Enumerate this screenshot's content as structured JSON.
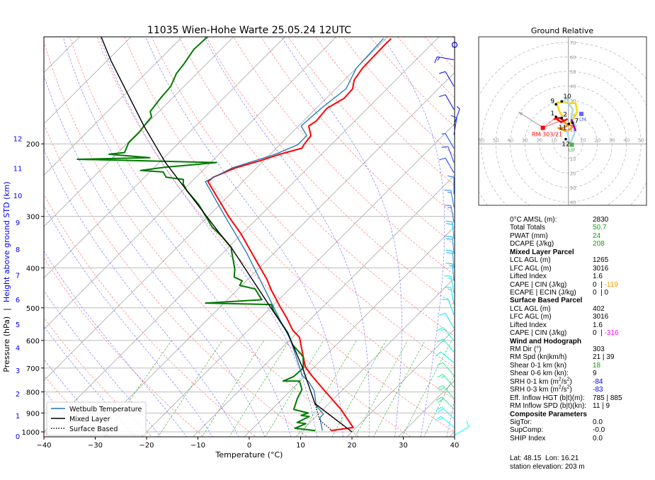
{
  "chart_data": {
    "type": "line",
    "title": "11035 Wien-Hohe Warte 25.05.24 12UTC",
    "xlabel": "Temperature (°C)",
    "ylabel_pressure": "Pressure (hPa)",
    "ylabel_sep": "|",
    "ylabel_height": "Height above ground STD (km)",
    "xlim": [
      -40,
      40
    ],
    "ylim_hpa": [
      1028,
      110
    ],
    "x_ticks": [
      -40,
      -30,
      -20,
      -10,
      0,
      10,
      20,
      30,
      40
    ],
    "x_tick_labels": [
      "−40",
      "−30",
      "−20",
      "−10",
      "0",
      "10",
      "20",
      "30",
      "40"
    ],
    "p_ticks": [
      1000,
      900,
      800,
      700,
      600,
      500,
      400,
      300,
      200
    ],
    "p_tick_labels": [
      "1000",
      "900",
      "800",
      "700",
      "600",
      "500",
      "400",
      "300",
      "200"
    ],
    "height_ticks": [
      {
        "km": "0",
        "p": 1025
      },
      {
        "km": "1",
        "p": 913
      },
      {
        "km": "2",
        "p": 808
      },
      {
        "km": "3",
        "p": 709
      },
      {
        "km": "4",
        "p": 625
      },
      {
        "km": "5",
        "p": 548
      },
      {
        "km": "6",
        "p": 477
      },
      {
        "km": "7",
        "p": 416
      },
      {
        "km": "8",
        "p": 360
      },
      {
        "km": "9",
        "p": 310
      },
      {
        "km": "10",
        "p": 267
      },
      {
        "km": "11",
        "p": 229
      },
      {
        "km": "12",
        "p": 194
      }
    ],
    "legend": [
      "Wetbulb Temperature",
      "Mixed Layer",
      "Surface Based"
    ],
    "legend_placement": "lower-left",
    "colors": {
      "temperature": "#ff0000",
      "dewpoint": "#007a00",
      "wetbulb": "#1f77b4",
      "parcel": "#000000",
      "height_axis": "#0000ff"
    },
    "series": [
      {
        "name": "Temperature",
        "points": [
          [
            993,
            15.6
          ],
          [
            976,
            19.4
          ],
          [
            882,
            13.5
          ],
          [
            789,
            6.2
          ],
          [
            729,
            1.1
          ],
          [
            696,
            -1.7
          ],
          [
            656,
            -4.2
          ],
          [
            590,
            -8.6
          ],
          [
            567,
            -11.3
          ],
          [
            528,
            -15.0
          ],
          [
            494,
            -18.7
          ],
          [
            453,
            -23.3
          ],
          [
            427,
            -26.2
          ],
          [
            367,
            -34.5
          ],
          [
            330,
            -40.3
          ],
          [
            301,
            -45.8
          ],
          [
            247,
            -56.8
          ],
          [
            241,
            -56.6
          ],
          [
            229,
            -54.2
          ],
          [
            220,
            -50.8
          ],
          [
            212,
            -48.1
          ],
          [
            205,
            -45.0
          ],
          [
            201,
            -45.3
          ],
          [
            191,
            -45.7
          ],
          [
            181,
            -48.0
          ],
          [
            176,
            -47.5
          ],
          [
            164,
            -47.9
          ],
          [
            155,
            -46.5
          ],
          [
            147,
            -46.7
          ],
          [
            140,
            -48.1
          ],
          [
            131,
            -48.8
          ],
          [
            115,
            -49.0
          ],
          [
            111,
            -49.0
          ]
        ]
      },
      {
        "name": "Dewpoint",
        "points": [
          [
            993,
            12.6
          ],
          [
            980,
            8.2
          ],
          [
            955,
            9.4
          ],
          [
            949,
            7.5
          ],
          [
            918,
            8.7
          ],
          [
            912,
            6.9
          ],
          [
            900,
            7.8
          ],
          [
            882,
            4.3
          ],
          [
            831,
            2.9
          ],
          [
            789,
            2.0
          ],
          [
            753,
            -0.1
          ],
          [
            753,
            -3.3
          ],
          [
            734,
            -2.1
          ],
          [
            700,
            -1.9
          ],
          [
            656,
            -4.2
          ],
          [
            614,
            -8.6
          ],
          [
            575,
            -11.8
          ],
          [
            510,
            -18.7
          ],
          [
            491,
            -20.5
          ],
          [
            487,
            -33.6
          ],
          [
            478,
            -23.3
          ],
          [
            450,
            -26.7
          ],
          [
            441,
            -30.4
          ],
          [
            430,
            -30.8
          ],
          [
            421,
            -33.1
          ],
          [
            403,
            -34.5
          ],
          [
            362,
            -38.9
          ],
          [
            357,
            -39.4
          ],
          [
            335,
            -43.5
          ],
          [
            318,
            -47.2
          ],
          [
            305,
            -49.5
          ],
          [
            280,
            -54.3
          ],
          [
            260,
            -59.1
          ],
          [
            250,
            -61.2
          ],
          [
            244,
            -62.0
          ],
          [
            241,
            -65.8
          ],
          [
            234,
            -67.4
          ],
          [
            232,
            -72.1
          ],
          [
            228,
            -68.0
          ],
          [
            222,
            -58.9
          ],
          [
            218,
            -86.6
          ],
          [
            216,
            -72.8
          ],
          [
            212,
            -81.4
          ],
          [
            210,
            -78.7
          ],
          [
            199,
            -79.8
          ],
          [
            187,
            -79.8
          ],
          [
            181,
            -80.1
          ],
          [
            172,
            -80.4
          ],
          [
            167,
            -81.7
          ],
          [
            155,
            -82.3
          ],
          [
            145,
            -82.6
          ],
          [
            135,
            -84.0
          ],
          [
            128,
            -84.4
          ],
          [
            118,
            -85.3
          ],
          [
            110,
            -85.1
          ]
        ]
      },
      {
        "name": "Wetbulb Temperature",
        "points": [
          [
            993,
            14.0
          ],
          [
            924,
            11.0
          ],
          [
            906,
            11.0
          ],
          [
            865,
            8.0
          ],
          [
            794,
            4.6
          ],
          [
            758,
            2.0
          ],
          [
            729,
            -0.7
          ],
          [
            673,
            -4.4
          ],
          [
            598,
            -9.9
          ],
          [
            528,
            -16.5
          ],
          [
            453,
            -24.5
          ],
          [
            367,
            -35.5
          ],
          [
            301,
            -46.5
          ],
          [
            247,
            -57.3
          ],
          [
            229,
            -54.8
          ],
          [
            212,
            -49.0
          ],
          [
            201,
            -46.5
          ],
          [
            191,
            -46.5
          ],
          [
            181,
            -49.5
          ],
          [
            164,
            -49.0
          ],
          [
            147,
            -48.0
          ],
          [
            131,
            -50.0
          ],
          [
            111,
            -50.5
          ]
        ]
      },
      {
        "name": "Mixed Layer",
        "points": [
          [
            1000,
            20.0
          ],
          [
            854,
            7.3
          ],
          [
            696,
            -2.3
          ],
          [
            575,
            -11.8
          ],
          [
            491,
            -21.0
          ],
          [
            357,
            -39.4
          ],
          [
            330,
            -44.4
          ],
          [
            222,
            -68.8
          ],
          [
            181,
            -80.1
          ],
          [
            126,
            -99.1
          ],
          [
            110,
            -105.8
          ]
        ]
      },
      {
        "name": "Surface Based",
        "points": [
          [
            987,
            15.4
          ],
          [
            936,
            11.4
          ],
          [
            871,
            8.2
          ],
          [
            854,
            7.3
          ]
        ]
      }
    ],
    "wind_barbs": [
      {
        "p": 125,
        "dir": 280,
        "spd": 15
      },
      {
        "p": 145,
        "dir": 330,
        "spd": 10
      },
      {
        "p": 165,
        "dir": 330,
        "spd": 10
      },
      {
        "p": 180,
        "dir": 20,
        "spd": 5
      },
      {
        "p": 190,
        "dir": 10,
        "spd": 10
      },
      {
        "p": 205,
        "dir": 330,
        "spd": 5
      },
      {
        "p": 222,
        "dir": 340,
        "spd": 10
      },
      {
        "p": 235,
        "dir": 330,
        "spd": 10
      },
      {
        "p": 265,
        "dir": 0,
        "spd": 10
      },
      {
        "p": 285,
        "dir": 350,
        "spd": 15
      },
      {
        "p": 310,
        "dir": 350,
        "spd": 15
      },
      {
        "p": 340,
        "dir": 355,
        "spd": 20
      },
      {
        "p": 370,
        "dir": 355,
        "spd": 20
      },
      {
        "p": 400,
        "dir": 355,
        "spd": 20
      },
      {
        "p": 430,
        "dir": 355,
        "spd": 15
      },
      {
        "p": 460,
        "dir": 350,
        "spd": 15
      },
      {
        "p": 490,
        "dir": 350,
        "spd": 15
      },
      {
        "p": 520,
        "dir": 340,
        "spd": 10
      },
      {
        "p": 560,
        "dir": 330,
        "spd": 10
      },
      {
        "p": 600,
        "dir": 320,
        "spd": 15
      },
      {
        "p": 640,
        "dir": 320,
        "spd": 15
      },
      {
        "p": 680,
        "dir": 310,
        "spd": 10
      },
      {
        "p": 730,
        "dir": 320,
        "spd": 10
      },
      {
        "p": 780,
        "dir": 320,
        "spd": 15
      },
      {
        "p": 830,
        "dir": 320,
        "spd": 20
      },
      {
        "p": 880,
        "dir": 315,
        "spd": 20
      },
      {
        "p": 930,
        "dir": 315,
        "spd": 20
      },
      {
        "p": 975,
        "dir": 310,
        "spd": 15
      },
      {
        "p": 1020,
        "dir": 60,
        "spd": 10
      }
    ],
    "calm_marker": {
      "p": 115
    }
  },
  "hodograph": {
    "title": "Ground Relative",
    "rings_kn": [
      10,
      20,
      30,
      40,
      50,
      60,
      70
    ],
    "x_tick_labels_left": [
      "60",
      "50",
      "40",
      "30",
      "20",
      "10"
    ],
    "x_tick_labels_right": [
      "10",
      "20",
      "30",
      "40",
      "50"
    ],
    "y_tick_labels_up": [
      "10",
      "20",
      "30",
      "40",
      "50",
      "60",
      "70"
    ],
    "y_tick_labels_down": [
      "10",
      "20",
      "30",
      "40"
    ],
    "segments": [
      {
        "color": "#ff0000",
        "uv": [
          [
            -10,
            17
          ],
          [
            -6,
            18
          ],
          [
            -3,
            16
          ],
          [
            -1,
            17
          ],
          [
            -5,
            15
          ],
          [
            -8,
            17
          ]
        ]
      },
      {
        "color": "#ff8c00",
        "uv": [
          [
            -3,
            15
          ],
          [
            0,
            13
          ],
          [
            -4,
            11
          ],
          [
            -7,
            11
          ],
          [
            -2,
            9
          ],
          [
            1,
            10
          ],
          [
            3,
            12
          ],
          [
            -1,
            14
          ]
        ]
      },
      {
        "color": "#ffd700",
        "uv": [
          [
            0,
            13
          ],
          [
            3,
            17
          ],
          [
            6,
            22
          ],
          [
            5,
            28
          ],
          [
            0,
            28
          ],
          [
            -4,
            29
          ],
          [
            -8,
            28
          ],
          [
            -6,
            22
          ],
          [
            -4,
            19
          ]
        ]
      },
      {
        "color": "#add8e6",
        "uv": [
          [
            -4,
            28
          ],
          [
            -1,
            32
          ],
          [
            0,
            28
          ],
          [
            3,
            24
          ],
          [
            2,
            18
          ],
          [
            5,
            12
          ],
          [
            4,
            7
          ],
          [
            2,
            2
          ],
          [
            1,
            0
          ],
          [
            0,
            5
          ],
          [
            -1,
            10
          ]
        ]
      },
      {
        "color": "#9400d3",
        "uv": [
          [
            2,
            17
          ],
          [
            5,
            9
          ]
        ]
      }
    ],
    "height_points": [
      {
        "label": "1",
        "u": -8.6,
        "v": 18.7
      },
      {
        "label": "2",
        "u": -4.6,
        "v": 17.9
      },
      {
        "label": "7",
        "u": 2.8,
        "v": 14.6
      },
      {
        "label": "9",
        "u": -8.6,
        "v": 27.3
      },
      {
        "label": "10",
        "u": -4.6,
        "v": 29.3
      },
      {
        "label": "11",
        "u": 0.3,
        "v": 13.8
      },
      {
        "label": "12",
        "u": -1.8,
        "v": 3.3
      }
    ],
    "rm": {
      "label": "RM 303/21",
      "u": -17.6,
      "v": 11.1,
      "color": "#ff0000"
    },
    "lm": {
      "label": "LM",
      "u": 8.9,
      "v": 20.7,
      "color": "#6666ff"
    },
    "up": {
      "label": "UP",
      "u": 2.3,
      "v": -0.5,
      "color": "#4caf50"
    },
    "mean_wind_arrow": {
      "from": [
        -17.6,
        11.4
      ],
      "to": [
        -34.3,
        22.0
      ]
    }
  },
  "params": {
    "rows": [
      {
        "label": "0°C AMSL (m):",
        "value": "2830",
        "color": "#000000"
      },
      {
        "label": "Total Totals",
        "value": "50.7",
        "color": "#1a9a1a"
      },
      {
        "label": "PWAT (mm)",
        "value": "24",
        "color": "#1a9a1a"
      },
      {
        "label": "DCAPE (J/kg)",
        "value": "208",
        "color": "#1a9a1a"
      }
    ],
    "mixed_layer": {
      "header": "Mixed Layer Parcel",
      "rows": [
        {
          "label": "LCL AGL (m)",
          "value": "1265"
        },
        {
          "label": "LFC AGL (m)",
          "value": "3016"
        },
        {
          "label": "Lifted Index",
          "value": "1.6"
        }
      ],
      "cape_label": "CAPE | CIN (J/kg)",
      "cape": "0",
      "cin": "-119",
      "cin_color": "#ff9900",
      "ecape_label": "ECAPE | ECIN (J/kg)",
      "ecape": "0",
      "ecin": "0",
      "sep": "|"
    },
    "surface_based": {
      "header": "Surface Based Parcel",
      "rows": [
        {
          "label": "LCL AGL (m)",
          "value": "402"
        },
        {
          "label": "LFC AGL (m)",
          "value": "3016"
        },
        {
          "label": "Lifted Index",
          "value": "1.6"
        }
      ],
      "cape_label": "CAPE | CIN (J/kg)",
      "cape": "0",
      "cin": "-316",
      "cin_color": "#ff00ff",
      "sep": "|"
    },
    "wind": {
      "header": "Wind and Hodograph",
      "rm_dir_label": "RM Dir (°)",
      "rm_dir": "303",
      "rm_spd_label": "RM Spd (kn|km/h)",
      "rm_spd": "21 | 39",
      "shear01_label": "Shear 0-1 km (kn)",
      "shear01": "18",
      "shear01_color": "#1a9a1a",
      "shear06_label": "Shear 0-6 km (kn):",
      "shear06": "9",
      "srh01_label": "SRH 0-1 km (m",
      "srh01": "-84",
      "srh03_label": "SRH 0-3 km (m",
      "srh03": "-83",
      "srh_unit_mid": "/s",
      "srh_unit_end": ")",
      "srh_sup": "2",
      "srh_color": "#0000ff",
      "eff_label": "Eff. Inflow HGT (b|t)(m):",
      "eff": "785 | 885",
      "rminflow_label": "RM Inflow SPD (b|t)(kn):",
      "rminflow": "11 | 9"
    },
    "composite": {
      "header": "Composite Parameters",
      "rows": [
        {
          "label": "SigTor:",
          "value": "0.0"
        },
        {
          "label": "SupComp:",
          "value": "-0.0"
        },
        {
          "label": "SHIP Index",
          "value": "0.0"
        }
      ]
    },
    "location": "Lat: 48.15  Lon: 16.21",
    "elevation": "station elevation: 203 m"
  }
}
